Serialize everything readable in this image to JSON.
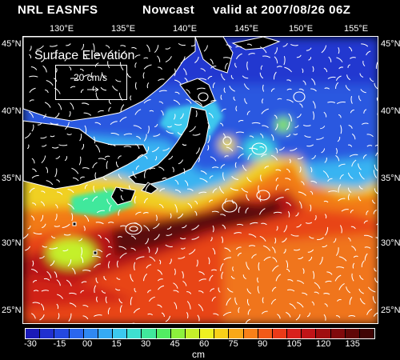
{
  "header": {
    "model": "NRL EASNFS",
    "kind": "Nowcast",
    "valid": "valid at 2007/08/26 06Z"
  },
  "axes": {
    "lon_labels": [
      "130°E",
      "135°E",
      "140°E",
      "145°E",
      "150°E",
      "155°E"
    ],
    "lat_labels": [
      "45°N",
      "40°N",
      "35°N",
      "30°N",
      "25°N"
    ]
  },
  "legend": {
    "field": "Surface Elevation",
    "vector_ref": "20 cm/s"
  },
  "colorbar": {
    "labels": [
      "-30",
      "-15",
      "00",
      "15",
      "30",
      "45",
      "60",
      "75",
      "90",
      "105",
      "120",
      "135"
    ],
    "unit": "cm",
    "colors": [
      "#1a1ab8",
      "#2030d0",
      "#2448e0",
      "#2a66ee",
      "#2f88f2",
      "#35aaf5",
      "#3cc8ee",
      "#3ee0d0",
      "#40e89c",
      "#52ec62",
      "#8cf03c",
      "#c4f02a",
      "#eef020",
      "#f8d018",
      "#f8a818",
      "#f88018",
      "#f25a18",
      "#ea3a18",
      "#d8201c",
      "#c01418",
      "#a00e10",
      "#800a0c",
      "#600808",
      "#400404"
    ]
  }
}
